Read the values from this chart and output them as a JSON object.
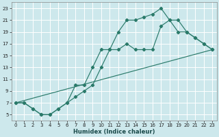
{
  "xlabel": "Humidex (Indice chaleur)",
  "bg_color": "#cde8ec",
  "grid_color": "#b0d4d8",
  "line_color": "#2a7a6a",
  "xlim": [
    -0.5,
    23.5
  ],
  "ylim": [
    4.0,
    24.0
  ],
  "yticks": [
    5,
    7,
    9,
    11,
    13,
    15,
    17,
    19,
    21,
    23
  ],
  "xticks": [
    0,
    1,
    2,
    3,
    4,
    5,
    6,
    7,
    8,
    9,
    10,
    11,
    12,
    13,
    14,
    15,
    16,
    17,
    18,
    19,
    20,
    21,
    22,
    23
  ],
  "line1_x": [
    0,
    1,
    2,
    3,
    4,
    5,
    6,
    7,
    8,
    9,
    10,
    11,
    12,
    13,
    14,
    15,
    16,
    17,
    18,
    19,
    20,
    21,
    22,
    23
  ],
  "line1_y": [
    7,
    7,
    6,
    5,
    5,
    6,
    7,
    10,
    10,
    13,
    16,
    16,
    19,
    21,
    21,
    21.5,
    22,
    23,
    21,
    21,
    19,
    18,
    17,
    16
  ],
  "line2_x": [
    0,
    1,
    2,
    3,
    4,
    5,
    6,
    7,
    8,
    9,
    10,
    11,
    12,
    13,
    14,
    15,
    16,
    17,
    18,
    19,
    20,
    21,
    22,
    23
  ],
  "line2_y": [
    7,
    7,
    6,
    5,
    5,
    6,
    7,
    8,
    9,
    10,
    13,
    16,
    16,
    17,
    16,
    16,
    16,
    20,
    21,
    19,
    19,
    18,
    17,
    16
  ],
  "line3_x": [
    0,
    23
  ],
  "line3_y": [
    7,
    16
  ]
}
